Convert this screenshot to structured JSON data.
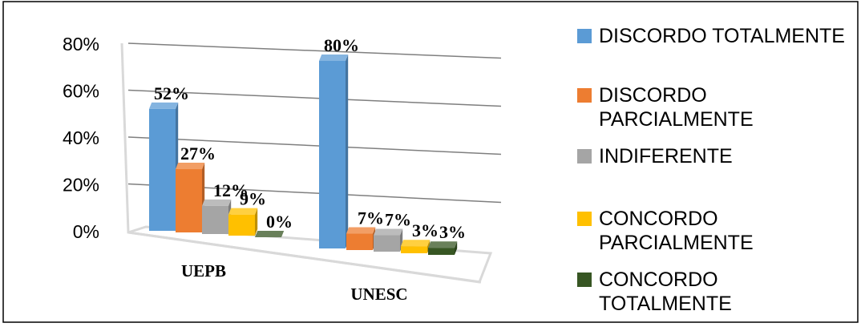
{
  "chart_data": {
    "type": "bar",
    "title": "",
    "categories": [
      "UEPB",
      "UNESC"
    ],
    "series": [
      {
        "name": "DISCORDO TOTALMENTE",
        "values": [
          52,
          80
        ],
        "labels": [
          "52%",
          "80%"
        ],
        "color": "#5b9bd5"
      },
      {
        "name": "DISCORDO PARCIALMENTE",
        "values": [
          27,
          7
        ],
        "labels": [
          "27%",
          "7%"
        ],
        "color": "#ed7d31"
      },
      {
        "name": "INDIFERENTE",
        "values": [
          12,
          7
        ],
        "labels": [
          "12%",
          "7%"
        ],
        "color": "#a5a5a5"
      },
      {
        "name": "CONCORDO PARCIALMENTE",
        "values": [
          9,
          3
        ],
        "labels": [
          "9%",
          "3%"
        ],
        "color": "#ffc000"
      },
      {
        "name": "CONCORDO TOTALMENTE",
        "values": [
          0,
          3
        ],
        "labels": [
          "0%",
          "3%"
        ],
        "color": "#375623"
      }
    ],
    "yticks": [
      "0%",
      "20%",
      "40%",
      "60%",
      "80%"
    ],
    "ylim": [
      0,
      80
    ],
    "grid": true,
    "legend_position": "right",
    "three_d": true
  }
}
